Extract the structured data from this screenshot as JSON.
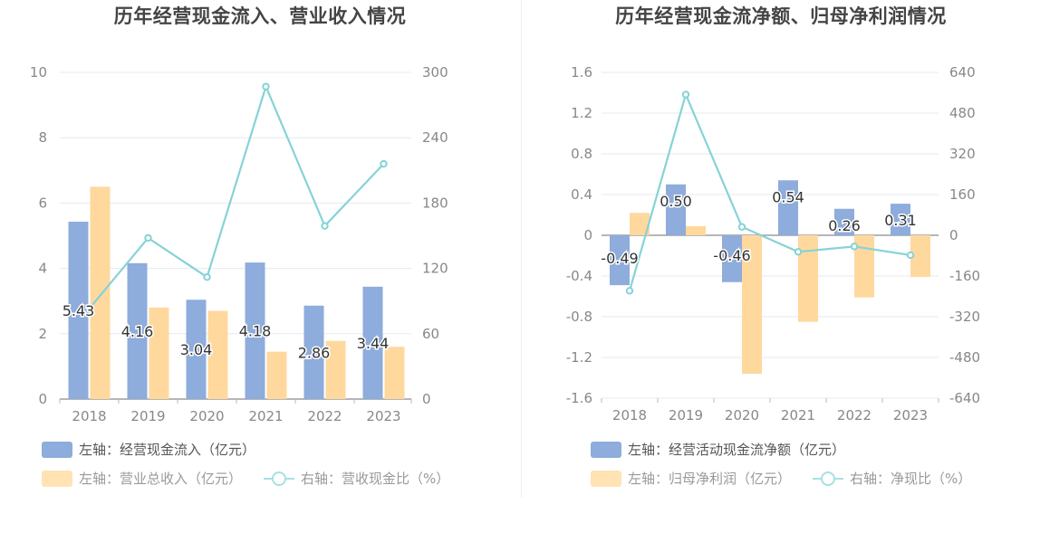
{
  "charts": [
    {
      "title": "历年经营现金流入、营业收入情况",
      "legend": [
        {
          "label": "左轴：经营现金流入（亿元）",
          "color": "#8eacdc",
          "kind": "bar"
        },
        {
          "label": "左轴：营业总收入（亿元）",
          "color": "#ffe3b3",
          "kind": "bar"
        },
        {
          "label": "右轴：营收现金比（%）",
          "color": "#a7e0e3",
          "kind": "line"
        }
      ]
    },
    {
      "title": "历年经营现金流净额、归母净利润情况",
      "legend": [
        {
          "label": "左轴：经营活动现金流净额（亿元）",
          "color": "#8eacdc",
          "kind": "bar"
        },
        {
          "label": "左轴：归母净利润（亿元）",
          "color": "#ffe3b3",
          "kind": "bar"
        },
        {
          "label": "右轴：净现比（%）",
          "color": "#a7e0e3",
          "kind": "line"
        }
      ]
    }
  ],
  "chart_data": [
    {
      "type": "bar",
      "categories": [
        "2018",
        "2019",
        "2020",
        "2021",
        "2022",
        "2023"
      ],
      "left_axis": {
        "ylim": [
          0,
          10
        ],
        "ticks": [
          "0",
          "2",
          "4",
          "6",
          "8",
          "10"
        ]
      },
      "right_axis": {
        "ylim": [
          0,
          300
        ],
        "ticks": [
          "0",
          "60",
          "120",
          "180",
          "240",
          "300"
        ]
      },
      "series": [
        {
          "name": "经营现金流入（亿元）",
          "axis": "left",
          "type": "bar",
          "color": "#8eacdc",
          "values": [
            5.43,
            4.16,
            3.04,
            4.18,
            2.86,
            3.44
          ],
          "labels": [
            "5.43",
            "4.16",
            "3.04",
            "4.18",
            "2.86",
            "3.44"
          ]
        },
        {
          "name": "营业总收入（亿元）",
          "axis": "left",
          "type": "bar",
          "color": "#ffd89e",
          "values": [
            6.5,
            2.8,
            2.7,
            1.45,
            1.78,
            1.6
          ]
        },
        {
          "name": "营收现金比（%）",
          "axis": "right",
          "type": "line",
          "color": "#86d3d6",
          "values": [
            83,
            148,
            112,
            287,
            159,
            216
          ]
        }
      ]
    },
    {
      "type": "bar",
      "categories": [
        "2018",
        "2019",
        "2020",
        "2021",
        "2022",
        "2023"
      ],
      "left_axis": {
        "ylim": [
          -1.6,
          1.6
        ],
        "ticks": [
          "-1.6",
          "-1.2",
          "-0.8",
          "-0.4",
          "0",
          "0.4",
          "0.8",
          "1.2",
          "1.6"
        ]
      },
      "right_axis": {
        "ylim": [
          -640,
          640
        ],
        "ticks": [
          "-640",
          "-480",
          "-320",
          "-160",
          "0",
          "160",
          "320",
          "480",
          "640"
        ]
      },
      "series": [
        {
          "name": "经营活动现金流净额（亿元）",
          "axis": "left",
          "type": "bar",
          "color": "#8eacdc",
          "values": [
            -0.49,
            0.5,
            -0.46,
            0.54,
            0.26,
            0.31
          ],
          "labels": [
            "-0.49",
            "0.50",
            "-0.46",
            "0.54",
            "0.26",
            "0.31"
          ]
        },
        {
          "name": "归母净利润（亿元）",
          "axis": "left",
          "type": "bar",
          "color": "#ffd89e",
          "values": [
            0.22,
            0.09,
            -1.36,
            -0.85,
            -0.61,
            -0.41
          ]
        },
        {
          "name": "净现比（%）",
          "axis": "right",
          "type": "line",
          "color": "#86d3d6",
          "values": [
            -218,
            553,
            33,
            -65,
            -44,
            -78
          ]
        }
      ]
    }
  ]
}
